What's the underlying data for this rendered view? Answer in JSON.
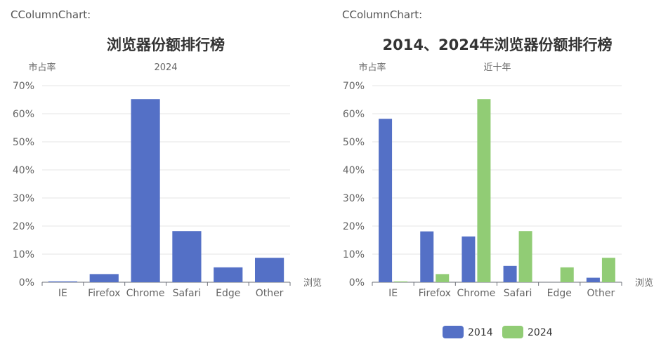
{
  "colors": {
    "series_2014": "#5470c6",
    "series_2024": "#91cc75"
  },
  "chart_data": [
    {
      "label": "CColumnChart:",
      "type": "bar",
      "title": "浏览器份额排行榜",
      "subtitle": "2024",
      "ylabel": "市占率",
      "xlabel": "浏览",
      "ylim": [
        0,
        70
      ],
      "yticks": [
        "0%",
        "10%",
        "20%",
        "30%",
        "40%",
        "50%",
        "60%",
        "70%"
      ],
      "categories": [
        "IE",
        "Firefox",
        "Chrome",
        "Safari",
        "Edge",
        "Other"
      ],
      "series": [
        {
          "values": [
            0.3,
            2.9,
            65.2,
            18.2,
            5.3,
            8.7
          ]
        }
      ],
      "grid": true
    },
    {
      "label": "CColumnChart:",
      "type": "bar",
      "title": "2014、2024年浏览器份额排行榜",
      "subtitle": "近十年",
      "ylabel": "市占率",
      "xlabel": "浏览",
      "ylim": [
        0,
        70
      ],
      "yticks": [
        "0%",
        "10%",
        "20%",
        "30%",
        "40%",
        "50%",
        "60%",
        "70%"
      ],
      "categories": [
        "IE",
        "Firefox",
        "Chrome",
        "Safari",
        "Edge",
        "Other"
      ],
      "series": [
        {
          "name": "2014",
          "values": [
            58.2,
            18.1,
            16.3,
            5.8,
            0,
            1.6
          ]
        },
        {
          "name": "2024",
          "values": [
            0.3,
            2.9,
            65.2,
            18.2,
            5.3,
            8.7
          ]
        }
      ],
      "legend": "bottom-center",
      "grid": true
    }
  ]
}
